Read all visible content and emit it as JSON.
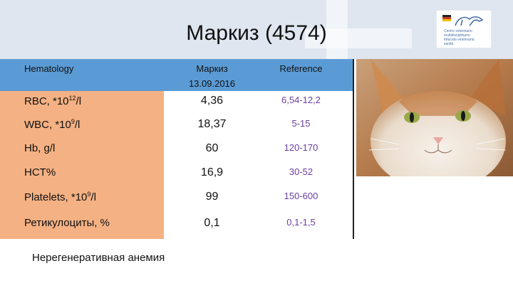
{
  "title": "Маркиз (4574)",
  "header": {
    "col1": "Hematology",
    "col2_line1": "Маркиз",
    "col2_line2": "13.09.2016",
    "col3": "Reference"
  },
  "rows": [
    {
      "label_pre": "RBC,  *10",
      "label_sup": "12",
      "label_post": "/l",
      "value": "4,36",
      "reference": "6,54-12,2"
    },
    {
      "label_pre": "WBC, *10",
      "label_sup": "9",
      "label_post": "/l",
      "value": "18,37",
      "reference": "5-15"
    },
    {
      "label_pre": "Hb, g/l",
      "label_sup": "",
      "label_post": "",
      "value": "60",
      "reference": "120-170"
    },
    {
      "label_pre": "HCT%",
      "label_sup": "",
      "label_post": "",
      "value": "16,9",
      "reference": "30-52"
    },
    {
      "label_pre": "Platelets, *10",
      "label_sup": "9",
      "label_post": "/l",
      "value": "99",
      "reference": "150-600"
    },
    {
      "label_pre": "Ретикулоциты, %",
      "label_sup": "",
      "label_post": "",
      "value": "0,1",
      "reference": "0,1-1,5"
    }
  ],
  "note": "Нерегенеративная анемия",
  "logo_text": "Centro veterinario\nmultidisciplinario\ntrifaceta veterinaria\nsanità",
  "colors": {
    "header_bar": "#5b9bd5",
    "label_column": "#f4b183",
    "reference_text": "#6a3fa0"
  }
}
